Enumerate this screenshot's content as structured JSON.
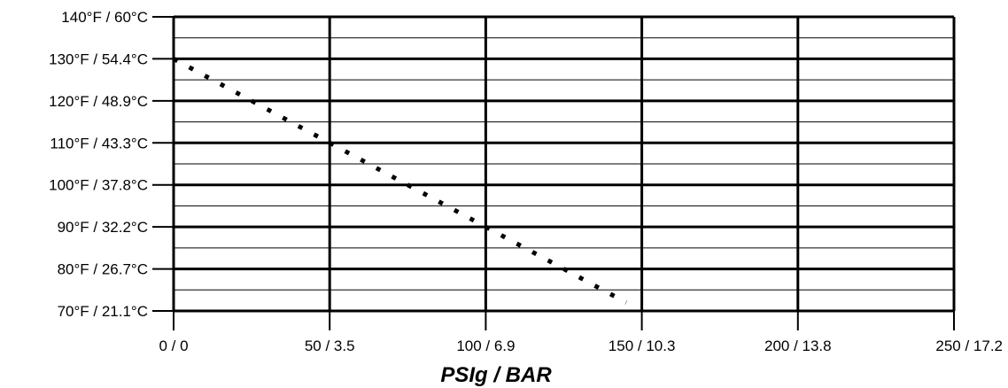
{
  "chart_data": {
    "type": "line",
    "title": "",
    "xlabel": "PSIg / BAR",
    "ylabel": "",
    "xlim": [
      0,
      250
    ],
    "ylim": [
      70,
      140
    ],
    "grid": true,
    "x_ticks": [
      {
        "value": 0,
        "label": "0 / 0"
      },
      {
        "value": 50,
        "label": "50 / 3.5"
      },
      {
        "value": 100,
        "label": "100 / 6.9"
      },
      {
        "value": 150,
        "label": "150 / 10.3"
      },
      {
        "value": 200,
        "label": "200 / 13.8"
      },
      {
        "value": 250,
        "label": "250 / 17.2"
      }
    ],
    "y_ticks": [
      {
        "value": 140,
        "label": "140°F / 60°C"
      },
      {
        "value": 130,
        "label": "130°F / 54.4°C"
      },
      {
        "value": 120,
        "label": "120°F / 48.9°C"
      },
      {
        "value": 110,
        "label": "110°F / 43.3°C"
      },
      {
        "value": 100,
        "label": "100°F / 37.8°C"
      },
      {
        "value": 90,
        "label": "90°F / 32.2°C"
      },
      {
        "value": 80,
        "label": "80°F / 26.7°C"
      },
      {
        "value": 70,
        "label": "70°F / 21.1°C"
      }
    ],
    "y_minor_ticks": [
      135,
      125,
      115,
      105,
      95,
      85,
      75
    ],
    "series": [
      {
        "style": "dotted",
        "color": "#000000",
        "points": [
          {
            "x": 0,
            "y": 130
          },
          {
            "x": 50,
            "y": 110
          },
          {
            "x": 100,
            "y": 90
          },
          {
            "x": 145,
            "y": 72
          }
        ]
      }
    ]
  }
}
